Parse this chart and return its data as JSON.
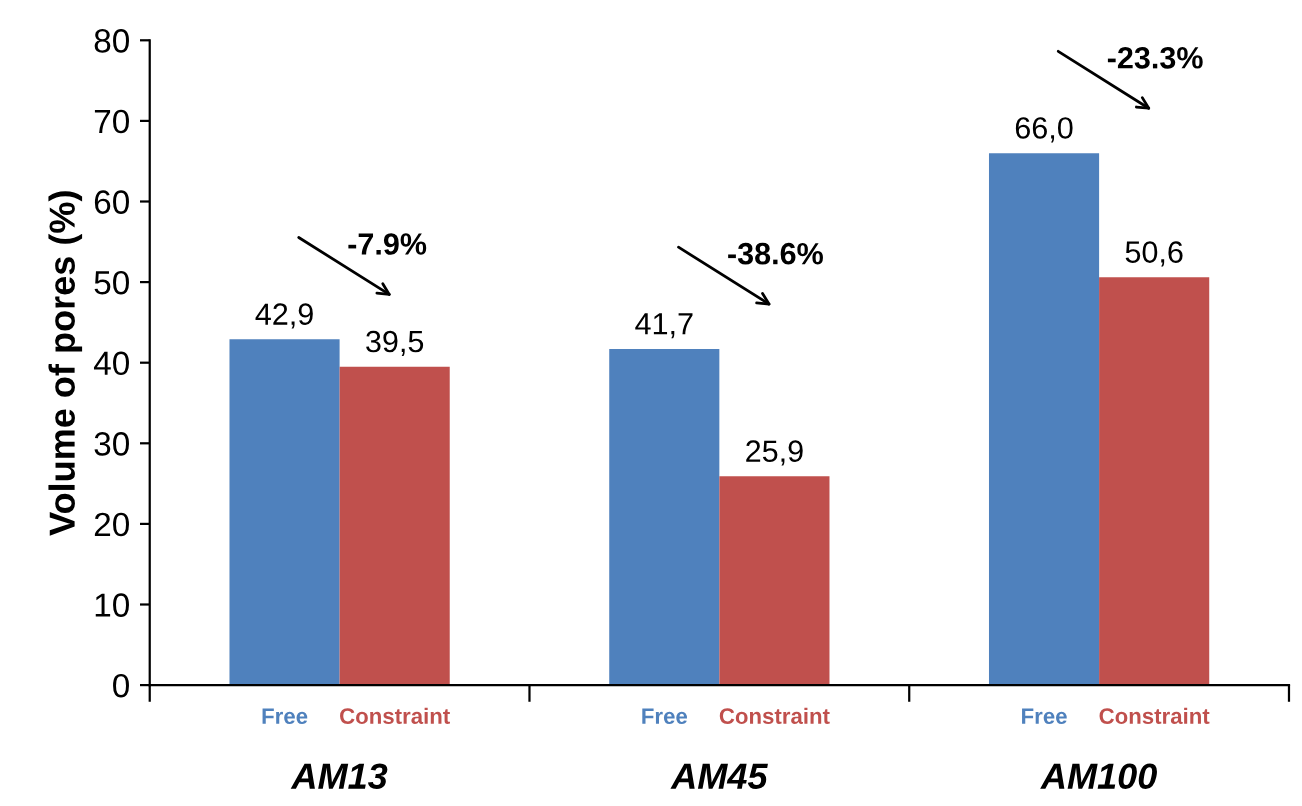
{
  "chart_data": {
    "type": "bar",
    "ylabel": "Volume of pores (%)",
    "categories": [
      "AM13",
      "AM45",
      "AM100"
    ],
    "series": [
      {
        "name": "Free",
        "color": "#4f81bd",
        "values": [
          42.9,
          41.7,
          66.0
        ],
        "value_labels": [
          "42,9",
          "41,7",
          "66,0"
        ]
      },
      {
        "name": "Constraint",
        "color": "#c0504d",
        "values": [
          39.5,
          25.9,
          50.6
        ],
        "value_labels": [
          "39,5",
          "25,9",
          "50,6"
        ]
      }
    ],
    "annotations": [
      "-7.9%",
      "-38.6%",
      "-23.3%"
    ],
    "ylim": [
      0,
      80
    ],
    "yticks": [
      0,
      10,
      20,
      30,
      40,
      50,
      60,
      70,
      80
    ],
    "grid": false,
    "legend": false
  }
}
